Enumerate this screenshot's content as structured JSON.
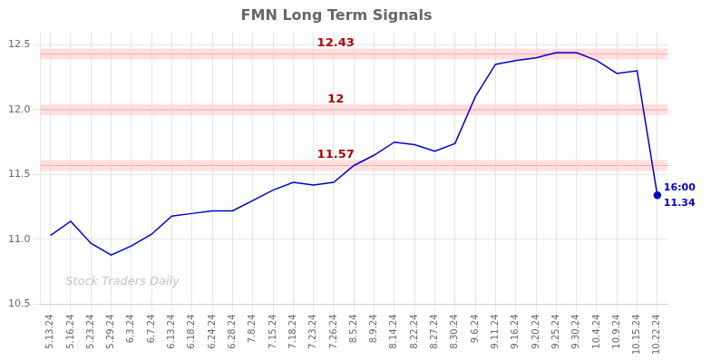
{
  "chart_data": {
    "type": "line",
    "title": "FMN Long Term Signals",
    "categories": [
      "5.13.24",
      "5.16.24",
      "5.23.24",
      "5.29.24",
      "6.3.24",
      "6.7.24",
      "6.13.24",
      "6.18.24",
      "6.24.24",
      "6.28.24",
      "7.8.24",
      "7.15.24",
      "7.18.24",
      "7.23.24",
      "7.26.24",
      "8.5.24",
      "8.9.24",
      "8.14.24",
      "8.22.24",
      "8.27.24",
      "8.30.24",
      "9.6.24",
      "9.11.24",
      "9.16.24",
      "9.20.24",
      "9.25.24",
      "9.30.24",
      "10.4.24",
      "10.9.24",
      "10.15.24",
      "10.22.24"
    ],
    "values": [
      11.03,
      11.14,
      10.97,
      10.88,
      10.95,
      11.04,
      11.18,
      11.2,
      11.22,
      11.22,
      11.3,
      11.38,
      11.44,
      11.42,
      11.44,
      11.57,
      11.65,
      11.75,
      11.73,
      11.68,
      11.74,
      12.1,
      12.35,
      12.38,
      12.4,
      12.44,
      12.44,
      12.38,
      12.28,
      12.3,
      11.34
    ],
    "color": "#0000cc",
    "ylim": [
      10.5,
      12.6
    ],
    "yticks": [
      10.5,
      {
        "value": 11.0,
        "label": "11.0"
      },
      11.5,
      {
        "value": 12.0,
        "label": "12.0"
      },
      12.5
    ],
    "grid": true,
    "annotations": [
      {
        "type": "hline",
        "y": 12.43,
        "text": "12.43",
        "color": "#aa0000"
      },
      {
        "type": "hline",
        "y": 12.0,
        "text": "12",
        "color": "#aa0000"
      },
      {
        "type": "hline",
        "y": 11.57,
        "text": "11.57",
        "color": "#aa0000"
      },
      {
        "type": "point_label",
        "x": "10.22.24",
        "y": 11.34,
        "text": "16:00",
        "color": "#0000cc"
      },
      {
        "type": "point_label",
        "x": "10.22.24",
        "y": 11.34,
        "text": "11.34",
        "color": "#0000cc"
      },
      {
        "type": "watermark",
        "text": "Stock Traders Daily",
        "color": "#bbbbbb"
      }
    ]
  }
}
